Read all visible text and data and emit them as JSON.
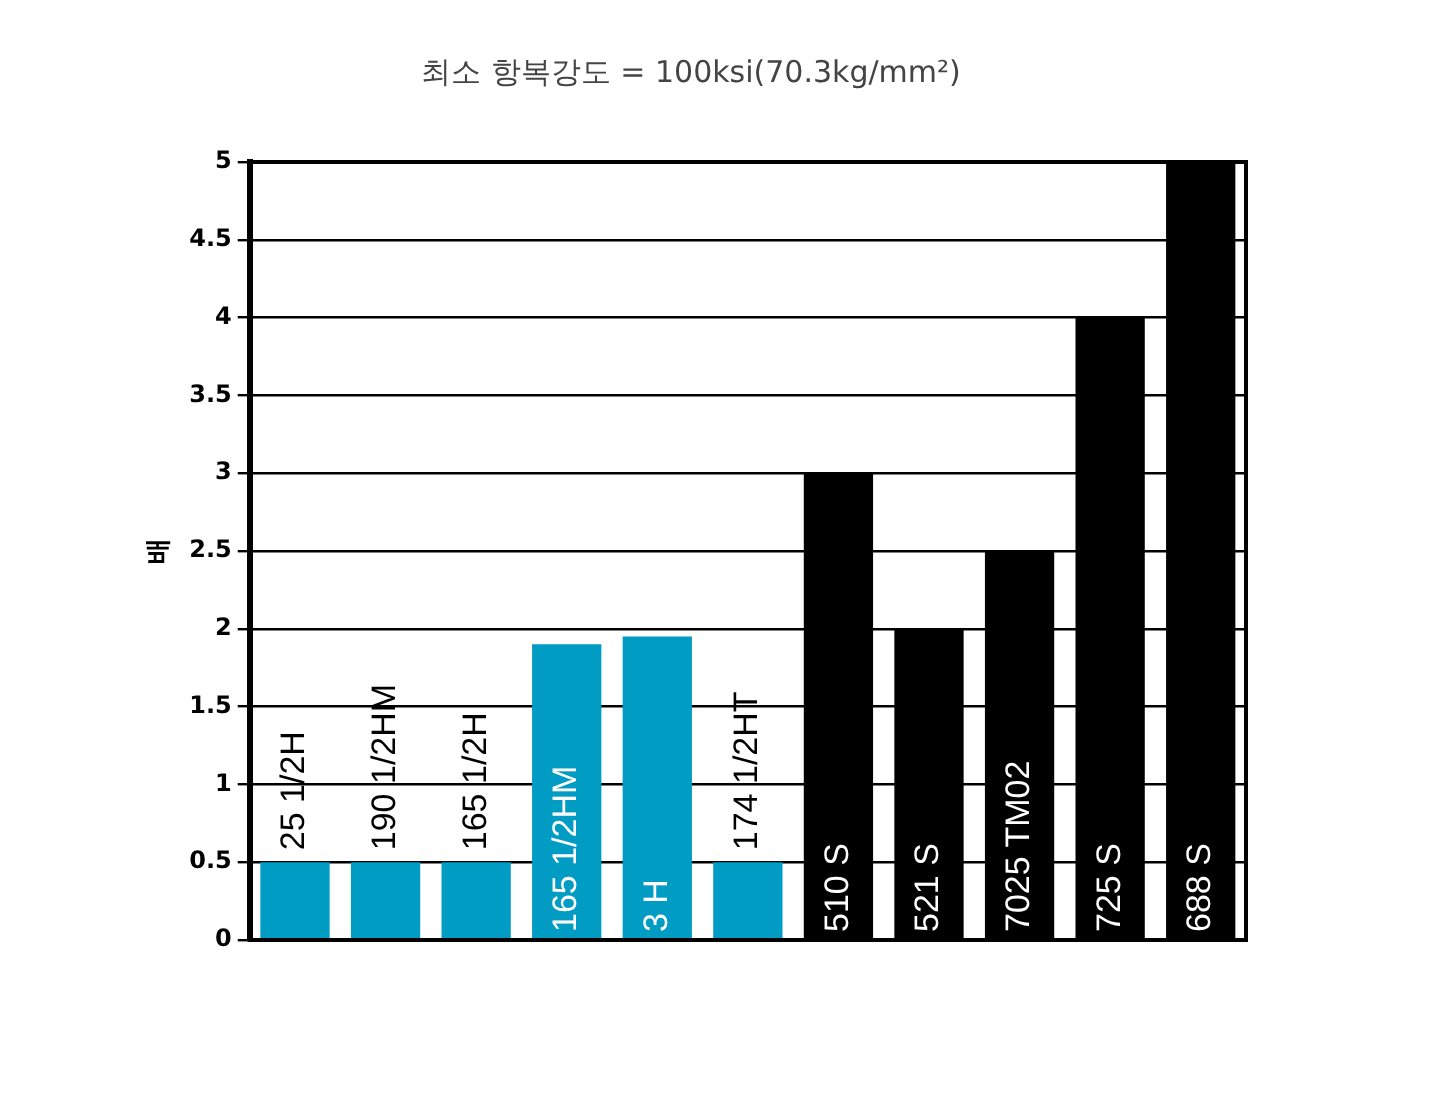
{
  "chart_data": {
    "type": "bar",
    "title": "최소 항복강도 = 100ksi(70.3kg/mm²)",
    "ylabel": "배",
    "categories": [
      "25 1/2H",
      "190 1/2HM",
      "165 1/2H",
      "165 1/2HM",
      "3 H",
      "174 1/2HT",
      "510 S",
      "521 S",
      "7025 TM02",
      "725 S",
      "688 S"
    ],
    "values": [
      0.5,
      0.5,
      0.5,
      1.9,
      1.95,
      0.5,
      3,
      2,
      2.5,
      4,
      5
    ],
    "colors": [
      "#009cc4",
      "#009cc4",
      "#009cc4",
      "#009cc4",
      "#009cc4",
      "#009cc4",
      "#000000",
      "#000000",
      "#000000",
      "#000000",
      "#000000"
    ],
    "ylim": [
      0,
      5
    ],
    "yticks": [
      0,
      0.5,
      1,
      1.5,
      2,
      2.5,
      3,
      3.5,
      4,
      4.5,
      5
    ],
    "grid": "y",
    "legend": false
  }
}
